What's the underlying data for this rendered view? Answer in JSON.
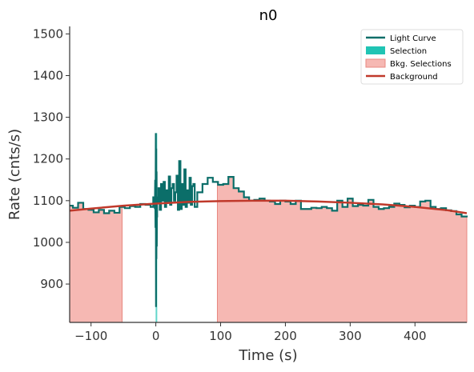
{
  "chart_data": {
    "type": "line",
    "title": "n0",
    "xlabel": "Time (s)",
    "ylabel": "Rate (cnts/s)",
    "xlim": [
      -133,
      480
    ],
    "ylim": [
      808,
      1518
    ],
    "xticks": [
      -100,
      0,
      100,
      200,
      300,
      400
    ],
    "xtick_labels": [
      "−100",
      "0",
      "100",
      "200",
      "300",
      "400"
    ],
    "yticks": [
      900,
      1000,
      1100,
      1200,
      1300,
      1400,
      1500
    ],
    "ytick_labels": [
      "900",
      "1000",
      "1100",
      "1200",
      "1300",
      "1400",
      "1500"
    ],
    "grid": false,
    "legend_position": "top-right",
    "legend": [
      {
        "label": "Light Curve",
        "kind": "line",
        "color": "#0b6e69"
      },
      {
        "label": "Selection",
        "kind": "patch",
        "color": "#20c4b4"
      },
      {
        "label": "Bkg. Selections",
        "kind": "patch",
        "color": "#f4a6a0"
      },
      {
        "label": "Background",
        "kind": "line",
        "color": "#c0392b"
      }
    ],
    "background_intervals": [
      [
        -133,
        -52
      ],
      [
        95,
        480
      ]
    ],
    "selection_interval": [
      -0.3,
      1.6
    ],
    "background_fit": [
      [
        -133,
        1076
      ],
      [
        -100,
        1081
      ],
      [
        -50,
        1088
      ],
      [
        0,
        1093
      ],
      [
        50,
        1097
      ],
      [
        100,
        1099
      ],
      [
        150,
        1100
      ],
      [
        200,
        1100
      ],
      [
        250,
        1098
      ],
      [
        300,
        1095
      ],
      [
        350,
        1091
      ],
      [
        400,
        1085
      ],
      [
        450,
        1077
      ],
      [
        480,
        1070
      ]
    ],
    "light_curve": {
      "step_x": [
        -133,
        -128,
        -120,
        -112,
        -104,
        -96,
        -88,
        -80,
        -72,
        -64,
        -56,
        -48,
        -40,
        -32,
        -24,
        -16,
        -8,
        -4,
        -2,
        0,
        2,
        4,
        6,
        8,
        10,
        12,
        14,
        16,
        18,
        20,
        22,
        24,
        26,
        28,
        30,
        32,
        34,
        36,
        38,
        40,
        42,
        44,
        46,
        48,
        50,
        52,
        54,
        56,
        58,
        60,
        64,
        72,
        80,
        88,
        96,
        104,
        112,
        120,
        128,
        136,
        144,
        152,
        160,
        168,
        176,
        184,
        192,
        200,
        208,
        216,
        224,
        232,
        240,
        248,
        256,
        264,
        272,
        280,
        288,
        296,
        304,
        312,
        320,
        328,
        336,
        344,
        352,
        360,
        368,
        376,
        384,
        392,
        400,
        408,
        416,
        424,
        432,
        440,
        448,
        456,
        464,
        472,
        480
      ],
      "step_y": [
        1088,
        1083,
        1095,
        1080,
        1078,
        1072,
        1078,
        1070,
        1076,
        1071,
        1085,
        1082,
        1087,
        1085,
        1092,
        1090,
        1085,
        1108,
        1090,
        1100,
        1095,
        1130,
        1078,
        1140,
        1100,
        1145,
        1085,
        1125,
        1095,
        1158,
        1090,
        1130,
        1140,
        1100,
        1120,
        1160,
        1078,
        1195,
        1080,
        1140,
        1090,
        1175,
        1085,
        1125,
        1095,
        1155,
        1090,
        1135,
        1140,
        1085,
        1120,
        1140,
        1155,
        1145,
        1138,
        1140,
        1157,
        1130,
        1122,
        1108,
        1100,
        1102,
        1105,
        1100,
        1098,
        1092,
        1100,
        1098,
        1092,
        1100,
        1080,
        1080,
        1083,
        1082,
        1085,
        1082,
        1076,
        1100,
        1085,
        1105,
        1087,
        1090,
        1088,
        1102,
        1085,
        1080,
        1082,
        1085,
        1093,
        1090,
        1084,
        1088,
        1085,
        1098,
        1100,
        1085,
        1080,
        1082,
        1077,
        1075,
        1067,
        1062,
        1060
      ],
      "spike_x": [
        -1.5,
        -1.0,
        -0.5,
        0.0,
        0.3,
        0.6,
        0.9,
        1.2,
        1.5,
        1.8,
        2.1
      ],
      "spike_y": [
        1080,
        1150,
        1035,
        1262,
        845,
        1225,
        960,
        1170,
        990,
        1110,
        1060
      ]
    }
  }
}
